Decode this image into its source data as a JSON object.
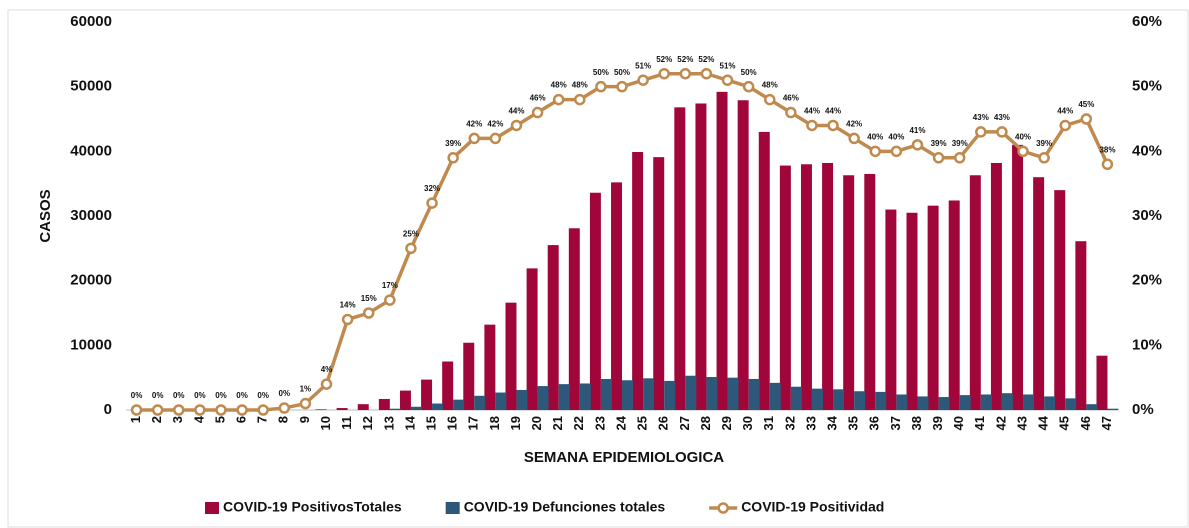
{
  "chart_data": {
    "type": "bar",
    "x_label": "SEMANA EPIDEMIOLOGICA",
    "y_label": "CASOS",
    "categories": [
      "1",
      "2",
      "3",
      "4",
      "5",
      "6",
      "7",
      "8",
      "9",
      "10",
      "11",
      "12",
      "13",
      "14",
      "15",
      "16",
      "17",
      "18",
      "19",
      "20",
      "21",
      "22",
      "23",
      "24",
      "25",
      "26",
      "27",
      "28",
      "29",
      "30",
      "31",
      "32",
      "33",
      "34",
      "35",
      "36",
      "37",
      "38",
      "39",
      "40",
      "41",
      "42",
      "43",
      "44",
      "45",
      "46",
      "47"
    ],
    "ylim": [
      0,
      60000
    ],
    "yticks": [
      0,
      10000,
      20000,
      30000,
      40000,
      50000,
      60000
    ],
    "y2lim": [
      0,
      60
    ],
    "y2ticks": [
      {
        "value": 0,
        "label": "0%"
      },
      {
        "value": 10,
        "label": "10%"
      },
      {
        "value": 20,
        "label": "20%"
      },
      {
        "value": 30,
        "label": "30%"
      },
      {
        "value": 40,
        "label": "40%"
      },
      {
        "value": 50,
        "label": "50%"
      },
      {
        "value": 60,
        "label": "60%"
      }
    ],
    "legend": "bottom",
    "series": [
      {
        "name": "COVID-19 PositivosTotales",
        "type": "bar",
        "color": "#a0063a",
        "values": [
          0,
          0,
          0,
          0,
          0,
          0,
          0,
          0,
          0,
          100,
          300,
          900,
          1700,
          3000,
          4700,
          7500,
          10400,
          13200,
          16600,
          21900,
          25500,
          28100,
          33600,
          35200,
          39900,
          39100,
          46800,
          47400,
          49200,
          47900,
          43000,
          37800,
          38000,
          38200,
          36300,
          36500,
          31000,
          30500,
          31600,
          32400,
          36300,
          38200,
          41000,
          36000,
          34000,
          26100,
          8400
        ]
      },
      {
        "name": "COVID-19 Defunciones totales",
        "type": "bar",
        "color": "#2d587a",
        "values": [
          0,
          0,
          0,
          0,
          0,
          0,
          0,
          0,
          0,
          0,
          0,
          0,
          200,
          500,
          1000,
          1600,
          2200,
          2700,
          3100,
          3700,
          4000,
          4100,
          4800,
          4600,
          4900,
          4500,
          5300,
          5100,
          5000,
          4800,
          4200,
          3600,
          3300,
          3200,
          2900,
          2800,
          2400,
          2100,
          2000,
          2300,
          2400,
          2600,
          2400,
          2100,
          1800,
          900,
          200
        ]
      },
      {
        "name": "COVID-19 Positividad",
        "type": "line",
        "axis": "y2",
        "color": "#c08a4e",
        "values": [
          0,
          0,
          0,
          0,
          0,
          0,
          0,
          0.3,
          1,
          4,
          14,
          15,
          17,
          25,
          32,
          39,
          42,
          42,
          44,
          46,
          48,
          48,
          50,
          50,
          51,
          52,
          52,
          52,
          51,
          50,
          48,
          46,
          44,
          44,
          42,
          40,
          40,
          41,
          39,
          39,
          43,
          43,
          40,
          39,
          44,
          45,
          38
        ],
        "value_labels": [
          "0%",
          "0%",
          "0%",
          "0%",
          "0%",
          "0%",
          "0%",
          "0%",
          "1%",
          "4%",
          "14%",
          "15%",
          "17%",
          "25%",
          "32%",
          "39%",
          "42%",
          "42%",
          "44%",
          "46%",
          "48%",
          "48%",
          "50%",
          "50%",
          "51%",
          "52%",
          "52%",
          "52%",
          "51%",
          "50%",
          "48%",
          "46%",
          "44%",
          "44%",
          "42%",
          "40%",
          "40%",
          "41%",
          "39%",
          "39%",
          "43%",
          "43%",
          "40%",
          "39%",
          "44%",
          "45%",
          "38%"
        ]
      }
    ]
  }
}
